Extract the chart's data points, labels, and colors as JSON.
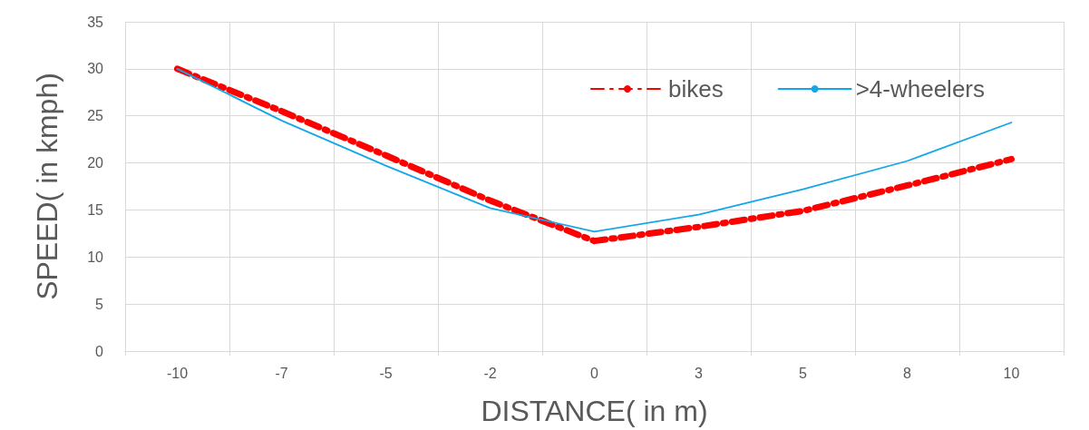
{
  "chart_data": {
    "type": "line",
    "xlabel": "DISTANCE( in m)",
    "ylabel": "SPEED( in kmph)",
    "categories": [
      "-10",
      "-7",
      "-5",
      "-2",
      "0",
      "3",
      "5",
      "8",
      "10"
    ],
    "series": [
      {
        "name": "bikes",
        "color": "#ff0000",
        "line_style": "dashed",
        "values": [
          30,
          25.5,
          20.8,
          16,
          11.7,
          13.2,
          14.9,
          17.6,
          20.4
        ]
      },
      {
        "name": ">4-wheelers",
        "color": "#12a7e8",
        "line_style": "solid",
        "values": [
          30,
          24.5,
          19.7,
          15.2,
          12.7,
          14.5,
          17.2,
          20.2,
          24.3
        ]
      }
    ],
    "ylim": [
      0,
      35
    ],
    "yticks": [
      0,
      5,
      10,
      15,
      20,
      25,
      30,
      35
    ],
    "grid": true,
    "legend": "top right",
    "marker": "none"
  }
}
